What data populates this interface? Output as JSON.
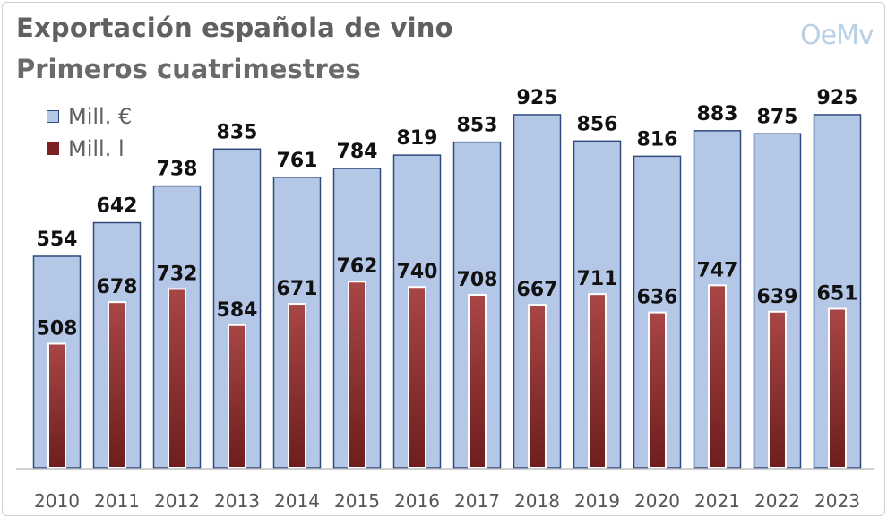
{
  "title": "Exportación española de vino",
  "subtitle": "Primeros cuatrimestres",
  "logo_text": "OeMv",
  "legend": {
    "eur_label": "Mill. €",
    "l_label": "Mill. l"
  },
  "colors": {
    "eur_fill": "#b4c7e7",
    "eur_stroke": "#2f4b7c",
    "l_fill_top": "#a84646",
    "l_fill_bottom": "#6e1d1d",
    "label_color": "#111111",
    "axis_label_color": "#555555"
  },
  "chart_data": {
    "type": "bar",
    "title": "Exportación española de vino",
    "subtitle": "Primeros cuatrimestres",
    "categories": [
      "2010",
      "2011",
      "2012",
      "2013",
      "2014",
      "2015",
      "2016",
      "2017",
      "2018",
      "2019",
      "2020",
      "2021",
      "2022",
      "2023"
    ],
    "series": [
      {
        "name": "Mill. €",
        "values": [
          554,
          642,
          738,
          835,
          761,
          784,
          819,
          853,
          925,
          856,
          816,
          883,
          875,
          925
        ]
      },
      {
        "name": "Mill. l",
        "values": [
          508,
          678,
          732,
          584,
          671,
          762,
          740,
          708,
          667,
          711,
          636,
          747,
          639,
          651
        ]
      }
    ],
    "ylim": [
      0,
      1000
    ],
    "xlabel": "",
    "ylabel": "",
    "legend_position": "top-left",
    "grid": false
  }
}
